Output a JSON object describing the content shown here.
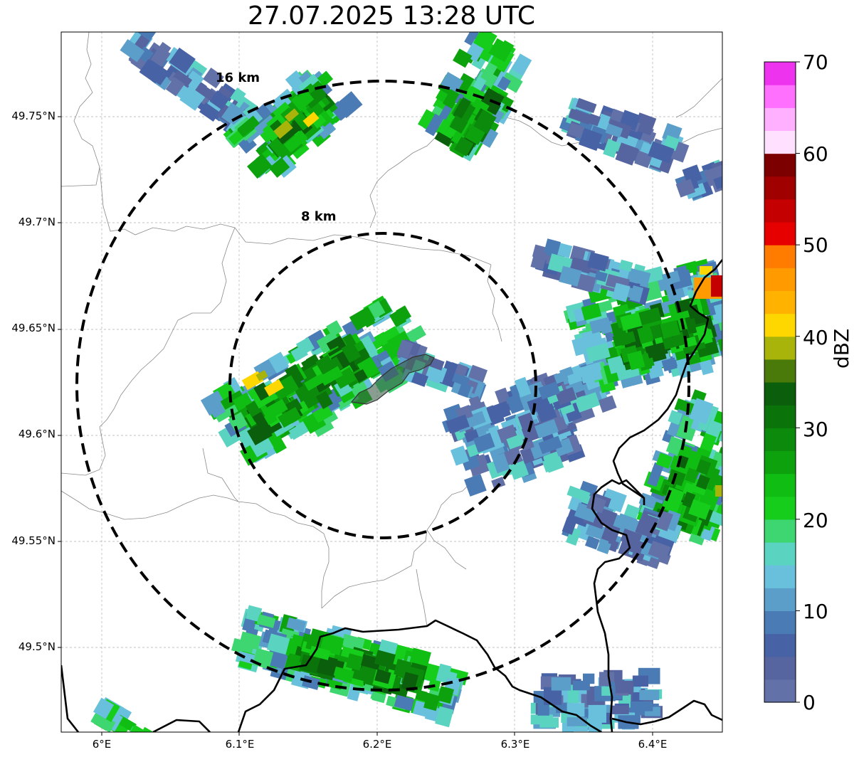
{
  "title": "27.07.2025 13:28 UTC",
  "map": {
    "lon_range": [
      5.97,
      6.45
    ],
    "lat_range": [
      49.46,
      49.79
    ],
    "lat_ticks": [
      "49.75°N",
      "49.7°N",
      "49.65°N",
      "49.6°N",
      "49.55°N",
      "49.5°N"
    ],
    "lon_ticks": [
      "6°E",
      "6.1°E",
      "6.2°E",
      "6.3°E",
      "6.4°E"
    ],
    "rings": [
      {
        "label": "16 km",
        "radius_km": 16
      },
      {
        "label": "8 km",
        "radius_km": 8
      }
    ],
    "border_color": "#000000",
    "ring_color": "#000000"
  },
  "colorbar": {
    "unit": "dBZ",
    "ticks": [
      "0",
      "10",
      "20",
      "30",
      "40",
      "50",
      "60",
      "70"
    ],
    "colors": [
      "#6272a8",
      "#5664a0",
      "#4862a6",
      "#4a7bb4",
      "#5a9ec9",
      "#68c0dc",
      "#5bd3c1",
      "#3dd670",
      "#15cd1a",
      "#10bd12",
      "#0ea10e",
      "#0c8a0c",
      "#0a730a",
      "#0b5e0b",
      "#4a7a0a",
      "#a8b40a",
      "#ffd700",
      "#ffb300",
      "#ff9a00",
      "#ff7c00",
      "#e60000",
      "#c40000",
      "#a10000",
      "#7c0000",
      "#ffe0ff",
      "#ffb0ff",
      "#ff70ff",
      "#ee33ee"
    ]
  }
}
